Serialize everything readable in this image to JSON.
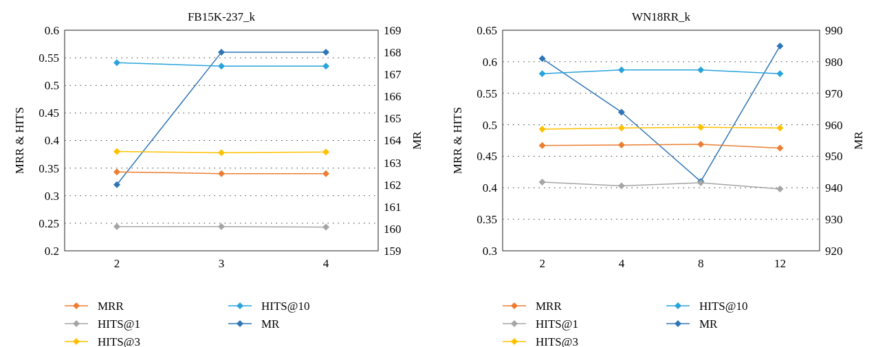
{
  "chart_data": [
    {
      "type": "line",
      "title": "FB15K-237_k",
      "ylabel": "MRR & HITS",
      "y2label": "MR",
      "categories": [
        "2",
        "3",
        "4"
      ],
      "ylim": [
        0.2,
        0.6
      ],
      "yticks": [
        {
          "value": 0.2,
          "label": "0.2"
        },
        {
          "value": 0.25,
          "label": "0.25"
        },
        {
          "value": 0.3,
          "label": "0.3"
        },
        {
          "value": 0.35,
          "label": "0.35"
        },
        {
          "value": 0.4,
          "label": "0.4"
        },
        {
          "value": 0.45,
          "label": "0.45"
        },
        {
          "value": 0.5,
          "label": "0.5"
        },
        {
          "value": 0.55,
          "label": "0.55"
        },
        {
          "value": 0.6,
          "label": "0.6"
        }
      ],
      "y2lim": [
        159,
        169
      ],
      "y2ticks": [
        159,
        160,
        161,
        162,
        163,
        164,
        165,
        166,
        167,
        168,
        169
      ],
      "grid": "y",
      "legend": "bottom",
      "marker": "diamond",
      "series": [
        {
          "name": "MRR",
          "color": "#ed7d31",
          "values": [
            0.343,
            0.34,
            0.34
          ]
        },
        {
          "name": "HITS@1",
          "color": "#a5a5a5",
          "values": [
            0.244,
            0.244,
            0.243
          ]
        },
        {
          "name": "HITS@3",
          "color": "#ffc000",
          "values": [
            0.38,
            0.378,
            0.379
          ]
        },
        {
          "name": "HITS@10",
          "color": "#29a3dc",
          "values": [
            0.541,
            0.535,
            0.535
          ]
        },
        {
          "name": "MR",
          "color": "#2e75b6",
          "axis": "y2",
          "values": [
            162,
            168,
            168
          ]
        }
      ]
    },
    {
      "type": "line",
      "title": "WN18RR_k",
      "ylabel": "MRR & HITS",
      "y2label": "MR",
      "categories": [
        "2",
        "4",
        "8",
        "12"
      ],
      "ylim": [
        0.3,
        0.65
      ],
      "yticks": [
        {
          "value": 0.3,
          "label": "0.3"
        },
        {
          "value": 0.35,
          "label": "0.35"
        },
        {
          "value": 0.4,
          "label": "0.4"
        },
        {
          "value": 0.45,
          "label": "0.45"
        },
        {
          "value": 0.5,
          "label": "0.5"
        },
        {
          "value": 0.55,
          "label": "0.55"
        },
        {
          "value": 0.6,
          "label": "0.6"
        },
        {
          "value": 0.65,
          "label": "0.65"
        }
      ],
      "y2lim": [
        920,
        990
      ],
      "y2ticks": [
        920,
        930,
        940,
        950,
        960,
        970,
        980,
        990
      ],
      "grid": "y",
      "legend": "bottom",
      "marker": "diamond",
      "series": [
        {
          "name": "MRR",
          "color": "#ed7d31",
          "values": [
            0.467,
            0.468,
            0.469,
            0.463
          ]
        },
        {
          "name": "HITS@1",
          "color": "#a5a5a5",
          "values": [
            0.409,
            0.403,
            0.408,
            0.398
          ]
        },
        {
          "name": "HITS@3",
          "color": "#ffc000",
          "values": [
            0.493,
            0.495,
            0.496,
            0.495
          ]
        },
        {
          "name": "HITS@10",
          "color": "#29a3dc",
          "values": [
            0.581,
            0.587,
            0.587,
            0.581
          ]
        },
        {
          "name": "MR",
          "color": "#2e75b6",
          "axis": "y2",
          "values": [
            981,
            964,
            942,
            985
          ]
        }
      ]
    }
  ]
}
